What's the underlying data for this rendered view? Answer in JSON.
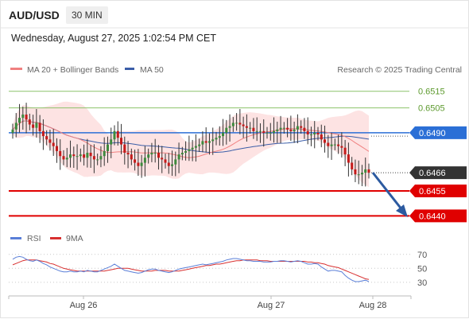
{
  "header": {
    "symbol": "AUD/USD",
    "timeframe": "30 MIN",
    "timestamp": "Wednesday, August 27, 2025 1:02:54 PM CET"
  },
  "legend": {
    "ma20_label": "MA 20 + Bollinger Bands",
    "ma50_label": "MA 50",
    "credit": "Research © 2025 Trading Central",
    "rsi_label": "RSI",
    "rsi_ma_label": "9MA"
  },
  "colors": {
    "up": "#3d8a3d",
    "down": "#c41a1a",
    "ma20": "#f08080",
    "ma50": "#3b5ea8",
    "band": "#fde3e3",
    "resistance_green": "#8cc26a",
    "pivot_blue": "#2b6fd6",
    "support_red": "#e00000",
    "rsi": "#5a7fd8",
    "rsi_ma": "#d83030"
  },
  "chart_data": [
    {
      "type": "candlestick",
      "x_ticks": [
        "Aug 26",
        "Aug 27",
        "Aug 28"
      ],
      "y_range": [
        0.6433,
        0.6523
      ],
      "levels": [
        {
          "label": "0.6515",
          "value": 0.6515,
          "kind": "resistance"
        },
        {
          "label": "0.6505",
          "value": 0.6505,
          "kind": "resistance"
        },
        {
          "label": "0.6490",
          "value": 0.649,
          "kind": "pivot"
        },
        {
          "label": "0.6466",
          "value": 0.6466,
          "kind": "last"
        },
        {
          "label": "0.6455",
          "value": 0.6455,
          "kind": "support"
        },
        {
          "label": "0.6440",
          "value": 0.644,
          "kind": "support"
        }
      ],
      "closes": [
        0.6492,
        0.6496,
        0.6499,
        0.6501,
        0.6498,
        0.6495,
        0.6493,
        0.6496,
        0.6491,
        0.6488,
        0.6486,
        0.6484,
        0.6482,
        0.6479,
        0.6476,
        0.6474,
        0.6475,
        0.6477,
        0.6476,
        0.6476,
        0.6477,
        0.6475,
        0.6478,
        0.6476,
        0.6474,
        0.6474,
        0.6476,
        0.6479,
        0.6483,
        0.6486,
        0.6491,
        0.6487,
        0.6483,
        0.6478,
        0.6477,
        0.6474,
        0.6472,
        0.647,
        0.6472,
        0.6475,
        0.6477,
        0.6478,
        0.6478,
        0.6475,
        0.6474,
        0.6472,
        0.647,
        0.6471,
        0.6474,
        0.6477,
        0.6478,
        0.6479,
        0.648,
        0.6481,
        0.6482,
        0.6483,
        0.6485,
        0.6484,
        0.6485,
        0.6486,
        0.6487,
        0.6488,
        0.649,
        0.6493,
        0.6494,
        0.6496,
        0.6496,
        0.6495,
        0.6494,
        0.6493,
        0.6493,
        0.6491,
        0.6491,
        0.6491,
        0.649,
        0.649,
        0.649,
        0.6491,
        0.6492,
        0.6493,
        0.6493,
        0.6492,
        0.6491,
        0.6492,
        0.6494,
        0.6493,
        0.6491,
        0.6489,
        0.6489,
        0.649,
        0.6489,
        0.6486,
        0.6484,
        0.6482,
        0.6483,
        0.6483,
        0.6482,
        0.6481,
        0.6477,
        0.6472,
        0.6468,
        0.6465,
        0.6465,
        0.6466,
        0.6468,
        0.6466
      ],
      "rsi": {
        "y_ticks": [
          "70",
          "50",
          "30"
        ],
        "values": [
          63,
          66,
          67,
          66,
          63,
          61,
          60,
          62,
          60,
          57,
          55,
          52,
          50,
          48,
          46,
          45,
          45,
          46,
          45,
          45,
          46,
          45,
          47,
          46,
          45,
          45,
          47,
          49,
          51,
          53,
          56,
          53,
          50,
          47,
          46,
          45,
          44,
          43,
          44,
          46,
          48,
          49,
          49,
          47,
          46,
          45,
          44,
          45,
          47,
          49,
          50,
          51,
          52,
          53,
          54,
          55,
          56,
          55,
          56,
          57,
          58,
          59,
          60,
          62,
          63,
          64,
          64,
          63,
          62,
          61,
          61,
          60,
          60,
          60,
          59,
          59,
          59,
          60,
          60,
          61,
          61,
          60,
          59,
          60,
          61,
          60,
          58,
          56,
          56,
          57,
          56,
          52,
          49,
          46,
          47,
          47,
          46,
          45,
          40,
          36,
          33,
          31,
          31,
          32,
          33,
          31
        ],
        "ma_values": [
          55,
          57,
          59,
          61,
          62,
          62,
          62,
          62,
          61,
          60,
          59,
          57,
          56,
          54,
          52,
          50,
          49,
          48,
          47,
          46,
          46,
          46,
          46,
          46,
          46,
          46,
          46,
          46,
          47,
          48,
          49,
          50,
          50,
          50,
          50,
          49,
          48,
          47,
          46,
          46,
          46,
          46,
          47,
          47,
          47,
          47,
          46,
          46,
          46,
          46,
          47,
          48,
          49,
          50,
          51,
          52,
          53,
          54,
          54,
          55,
          56,
          56,
          57,
          58,
          59,
          60,
          61,
          61,
          62,
          62,
          62,
          62,
          62,
          61,
          61,
          61,
          60,
          60,
          60,
          60,
          60,
          60,
          60,
          60,
          60,
          60,
          60,
          59,
          59,
          58,
          58,
          57,
          56,
          54,
          53,
          52,
          51,
          49,
          47,
          45,
          43,
          41,
          39,
          37,
          35,
          34
        ]
      }
    }
  ]
}
